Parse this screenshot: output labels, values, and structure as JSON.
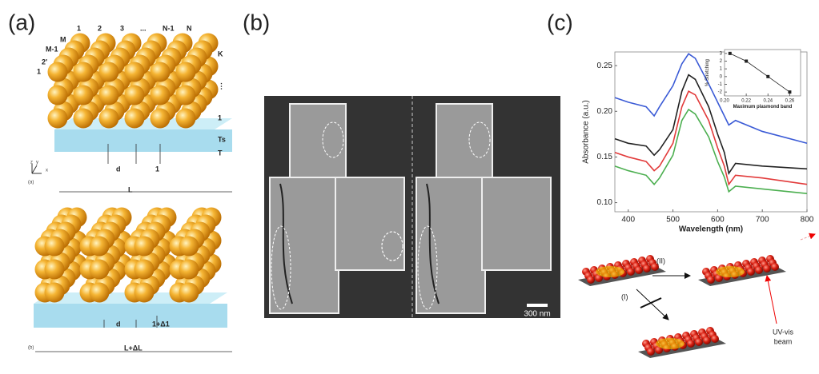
{
  "panels": {
    "a": {
      "label": "(a)",
      "top": {
        "columns": [
          "1",
          "2",
          "3",
          "...",
          "N-1",
          "N"
        ],
        "rows": [
          "M-1",
          "M",
          "2'",
          "1"
        ],
        "layers": [
          "K",
          "⋮",
          "1"
        ],
        "ts": "Ts",
        "t": "T",
        "d": "d",
        "gap": "1",
        "length": "L",
        "axes": [
          "z",
          "y",
          "x"
        ],
        "tag": "(a)"
      },
      "bottom": {
        "d": "d",
        "gap": "1+Δ1",
        "length": "L+ΔL",
        "tag": "(b)"
      }
    },
    "b": {
      "label": "(b)",
      "scale": "300 nm"
    },
    "c": {
      "label": "(c)",
      "path_ii": "(II)",
      "path_i": "(I)",
      "beam": [
        "UV-vis",
        "beam"
      ]
    }
  },
  "chart_data": [
    {
      "type": "line",
      "x_label": "Wavelength (nm)",
      "y_label": "Absorbance (a.u.)",
      "x": [
        370,
        400,
        440,
        458,
        470,
        500,
        520,
        535,
        550,
        580,
        600,
        615,
        625,
        640,
        700,
        800
      ],
      "series": [
        {
          "color": "#3b5bd6",
          "values": [
            0.215,
            0.21,
            0.205,
            0.195,
            0.205,
            0.228,
            0.252,
            0.263,
            0.258,
            0.23,
            0.21,
            0.195,
            0.185,
            0.19,
            0.178,
            0.165
          ]
        },
        {
          "color": "#222222",
          "values": [
            0.17,
            0.165,
            0.162,
            0.152,
            0.158,
            0.18,
            0.222,
            0.24,
            0.235,
            0.205,
            0.175,
            0.155,
            0.132,
            0.143,
            0.14,
            0.137
          ]
        },
        {
          "color": "#e23b3b",
          "values": [
            0.155,
            0.15,
            0.145,
            0.135,
            0.14,
            0.165,
            0.205,
            0.222,
            0.218,
            0.19,
            0.16,
            0.14,
            0.12,
            0.13,
            0.127,
            0.12
          ]
        },
        {
          "color": "#4caf50",
          "values": [
            0.14,
            0.135,
            0.13,
            0.12,
            0.127,
            0.152,
            0.19,
            0.202,
            0.197,
            0.172,
            0.145,
            0.128,
            0.112,
            0.118,
            0.115,
            0.11
          ]
        }
      ],
      "xlim": [
        370,
        800
      ],
      "xticks": [
        400,
        500,
        600,
        700,
        800
      ],
      "ylim": [
        0.09,
        0.265
      ],
      "yticks": [
        {
          "value": 0.1,
          "label": "0.10"
        },
        0.15,
        {
          "value": 0.2,
          "label": "0.20"
        },
        0.25
      ]
    },
    {
      "type": "scatter",
      "x_label": "Maximum plasmond band",
      "y_label": "% Stretching",
      "color": "#222222",
      "x": [
        0.205,
        0.22,
        0.24,
        0.26
      ],
      "values": [
        3,
        2,
        0,
        -2
      ],
      "xlim": [
        0.2,
        0.27
      ],
      "xticks": [
        {
          "value": 0.2,
          "label": "0.20"
        },
        0.22,
        0.24,
        0.26
      ],
      "ylim": [
        -2.5,
        3.5
      ],
      "yticks": [
        -2,
        -1,
        0,
        1,
        2,
        3
      ]
    }
  ]
}
